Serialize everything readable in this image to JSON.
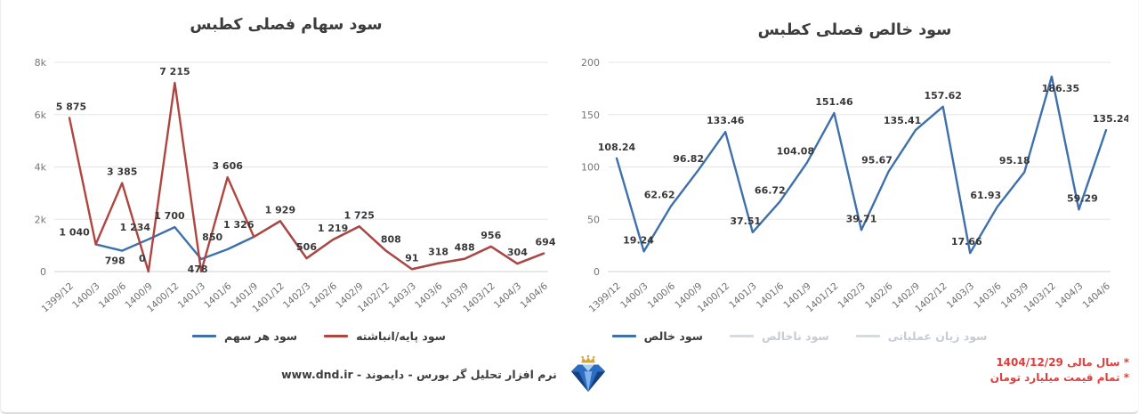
{
  "page": {
    "footer_text": "نرم افزار تحلیل گر بورس - دایموند - www.dnd.ir",
    "footnotes": [
      "* سال مالی 1404/12/29",
      "* تمام قیمت میلیارد تومان"
    ],
    "footnote_color": "#e23c3c",
    "logo_name": "diamond-crown-logo",
    "logo_colors": {
      "gold": "#d5a33c",
      "blue_dark": "#16417f",
      "blue": "#2d6cc0",
      "blue_light": "#7fb2e8",
      "blue_pale": "#aed0f4"
    }
  },
  "theme": {
    "grid_color": "#e5e5e5",
    "axis_color": "#d2d2d2",
    "tick_text": "#757575",
    "label_text": "#383838"
  },
  "chart_data": [
    {
      "type": "line",
      "title": "سود سهام فصلی کطبس",
      "categories": [
        "1399/12",
        "1400/3",
        "1400/6",
        "1400/9",
        "1400/12",
        "1401/3",
        "1401/6",
        "1401/9",
        "1401/12",
        "1402/3",
        "1402/6",
        "1402/9",
        "1402/12",
        "1403/3",
        "1403/6",
        "1403/9",
        "1403/12",
        "1404/3",
        "1404/6"
      ],
      "ylim": [
        0,
        8000
      ],
      "yticks": [
        {
          "v": 0,
          "label": "0"
        },
        {
          "v": 2000,
          "label": "2k"
        },
        {
          "v": 4000,
          "label": "4k"
        },
        {
          "v": 6000,
          "label": "6k"
        },
        {
          "v": 8000,
          "label": "8k"
        }
      ],
      "grid": true,
      "legend_position": "bottom",
      "series": [
        {
          "name": "سود هر سهم",
          "color": "#3e70ac",
          "enabled": true,
          "values": [
            null,
            1040,
            798,
            1234,
            1700,
            478,
            850,
            1326,
            1929,
            506,
            1219,
            1725,
            808,
            91,
            318,
            488,
            956,
            304,
            694
          ],
          "labels": [
            null,
            "1 040",
            "798",
            "1 234",
            "1 700",
            "478",
            "850",
            "1 326",
            null,
            null,
            null,
            null,
            null,
            null,
            null,
            null,
            null,
            null,
            null
          ],
          "label_offsets": {
            "1": [
              -24,
              -1
            ],
            "2": [
              -8,
              24
            ],
            "3": [
              -15,
              -1
            ],
            "4": [
              -6,
              0
            ],
            "5": [
              -4,
              24
            ],
            "6": [
              -17,
              -1
            ],
            "7": [
              -17,
              -1
            ]
          }
        },
        {
          "name": "سود پایه/انباشته",
          "color": "#b04540",
          "enabled": true,
          "values": [
            5875,
            1040,
            3385,
            0,
            7215,
            0,
            3606,
            1326,
            1929,
            506,
            1219,
            1725,
            808,
            91,
            318,
            488,
            956,
            304,
            694
          ],
          "labels": [
            "5 875",
            null,
            "3 385",
            "0",
            "7 215",
            null,
            "3 606",
            null,
            "1 929",
            "506",
            "1 219",
            "1 725",
            "808",
            "91",
            "318",
            "488",
            "956",
            "304",
            "694"
          ],
          "label_offsets": {
            "0": [
              2,
              0
            ],
            "3": [
              -7,
              -2
            ],
            "12": [
              6,
              0
            ],
            "18": [
              2,
              0
            ]
          }
        }
      ]
    },
    {
      "type": "line",
      "title": "سود خالص فصلی کطبس",
      "categories": [
        "1399/12",
        "1400/3",
        "1400/6",
        "1400/9",
        "1400/12",
        "1401/3",
        "1401/6",
        "1401/9",
        "1401/12",
        "1402/3",
        "1402/6",
        "1402/9",
        "1402/12",
        "1403/3",
        "1403/6",
        "1403/9",
        "1403/12",
        "1404/3",
        "1404/6"
      ],
      "ylim": [
        0,
        200
      ],
      "yticks": [
        {
          "v": 0,
          "label": "0"
        },
        {
          "v": 50,
          "label": "50"
        },
        {
          "v": 100,
          "label": "100"
        },
        {
          "v": 150,
          "label": "150"
        },
        {
          "v": 200,
          "label": "200"
        }
      ],
      "grid": true,
      "legend_position": "bottom",
      "series": [
        {
          "name": "سود خالص",
          "color": "#3e70ac",
          "enabled": true,
          "values": [
            108.24,
            19.24,
            62.62,
            96.82,
            133.46,
            37.51,
            66.72,
            104.08,
            151.46,
            39.71,
            95.67,
            135.41,
            157.62,
            17.66,
            61.93,
            95.18,
            186.35,
            59.29,
            135.24
          ],
          "labels": [
            "108.24",
            "19.24",
            "62.62",
            "96.82",
            "133.46",
            "37.51",
            "66.72",
            "104.08",
            "151.46",
            "39.71",
            "95.67",
            "135.41",
            "157.62",
            "17.66",
            "61.93",
            "95.18",
            "186.35",
            "59.29",
            "135.24"
          ],
          "label_offsets": {
            "1": [
              -6,
              0
            ],
            "2": [
              -13,
              0
            ],
            "3": [
              -11,
              0
            ],
            "5": [
              -8,
              0
            ],
            "6": [
              -11,
              0
            ],
            "7": [
              -13,
              0
            ],
            "10": [
              -13,
              0
            ],
            "11": [
              -15,
              2
            ],
            "13": [
              -4,
              0
            ],
            "14": [
              -13,
              0
            ],
            "15": [
              -11,
              0
            ],
            "16": [
              10,
              26
            ],
            "17": [
              4,
              0
            ],
            "18": [
              6,
              0
            ]
          }
        },
        {
          "name": "سود ناخالص",
          "color": "#d7dade",
          "enabled": false,
          "values": null,
          "labels": null
        },
        {
          "name": "سود زیان عملیاتی",
          "color": "#d7dade",
          "enabled": false,
          "values": null,
          "labels": null
        }
      ]
    }
  ]
}
